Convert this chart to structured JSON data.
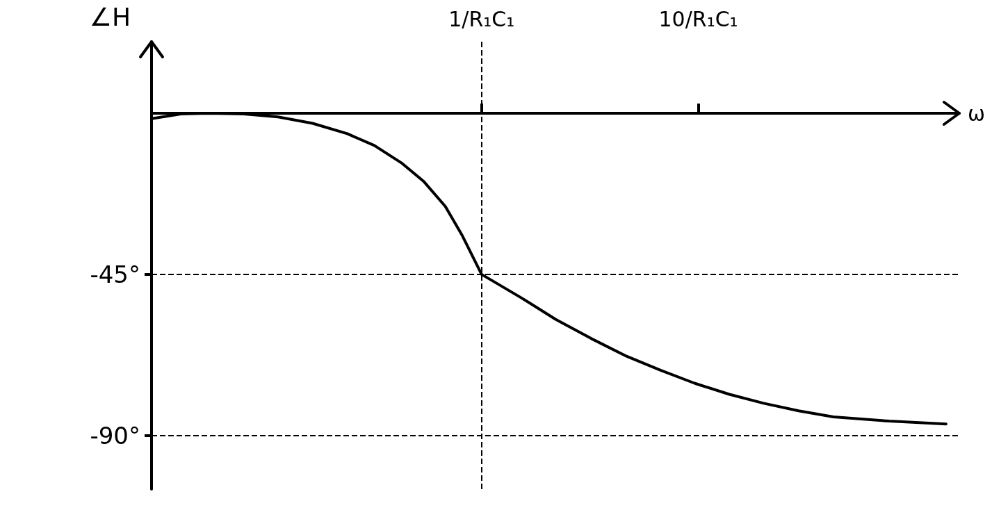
{
  "chart_data": {
    "type": "line",
    "xlabel": "ω",
    "ylabel": "∠H",
    "x": [
      0.03,
      0.041,
      0.055,
      0.08,
      0.115,
      0.166,
      0.24,
      0.32,
      0.43,
      0.54,
      0.68,
      0.81,
      1,
      1.52,
      2.2,
      3.2,
      4.6,
      6.7,
      9.6,
      13.9,
      20,
      29,
      42,
      76,
      139
    ],
    "series": [
      {
        "color": "#000000",
        "values": [
          -1.5,
          -0.2,
          0,
          -0.2,
          -1,
          -2.8,
          -5.7,
          -9,
          -14,
          -19,
          -26,
          -33.9,
          -45,
          -51.5,
          -57.6,
          -62.9,
          -67.7,
          -71.8,
          -75.4,
          -78.5,
          -81,
          -83.1,
          -84.8,
          -86,
          -86.8
        ]
      }
    ],
    "log": "x",
    "xlim": [
      0.03,
      160
    ],
    "xticks": [
      {
        "value": 1,
        "label": "1/R₁C₁"
      },
      {
        "value": 10,
        "label": "10/R₁C₁"
      }
    ],
    "ylim": [
      -105,
      20
    ],
    "yticks": [
      {
        "value": -45,
        "label": "-45°"
      },
      {
        "value": -90,
        "label": "-90°"
      }
    ],
    "ref_lines": [
      {
        "axis": "y",
        "value": -45,
        "line_style": "dashed"
      },
      {
        "axis": "y",
        "value": -90,
        "line_style": "dashed"
      },
      {
        "axis": "x",
        "value": 1,
        "line_style": "dashed"
      }
    ],
    "marker": "none",
    "line_style": "solid",
    "grid": false
  }
}
